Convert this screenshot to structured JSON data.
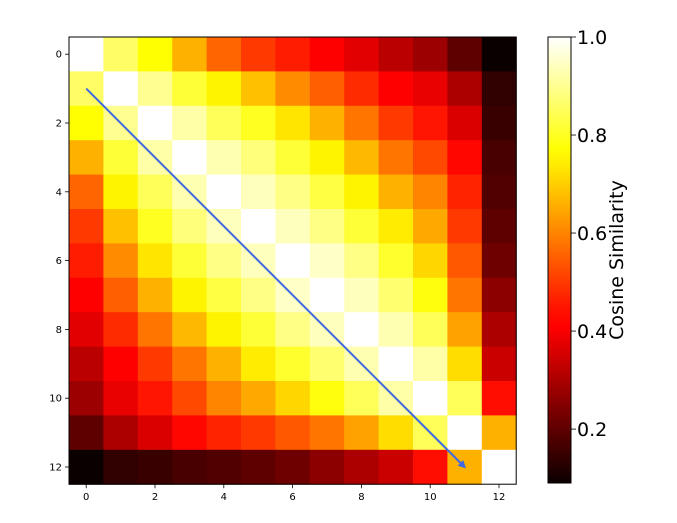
{
  "chart_data": {
    "type": "heatmap",
    "title": "",
    "xlabel": "",
    "ylabel": "",
    "rows": 13,
    "cols": 13,
    "x_ticks": [
      0,
      2,
      4,
      6,
      8,
      10,
      12
    ],
    "y_ticks": [
      0,
      2,
      4,
      6,
      8,
      10,
      12
    ],
    "colormap": "hot",
    "colorbar": {
      "label": "Cosine Similarity",
      "range": [
        0.09,
        1.0
      ],
      "ticks": [
        "0.2",
        "0.4",
        "0.6",
        "0.8",
        "1.0"
      ]
    },
    "values": [
      [
        1.0,
        0.86,
        0.77,
        0.66,
        0.56,
        0.5,
        0.46,
        0.42,
        0.37,
        0.32,
        0.28,
        0.2,
        0.09
      ],
      [
        0.86,
        1.0,
        0.9,
        0.82,
        0.75,
        0.68,
        0.61,
        0.55,
        0.48,
        0.42,
        0.38,
        0.3,
        0.14
      ],
      [
        0.77,
        0.9,
        1.0,
        0.92,
        0.85,
        0.8,
        0.73,
        0.66,
        0.58,
        0.5,
        0.45,
        0.36,
        0.15
      ],
      [
        0.66,
        0.82,
        0.92,
        1.0,
        0.93,
        0.88,
        0.82,
        0.75,
        0.67,
        0.58,
        0.52,
        0.43,
        0.17
      ],
      [
        0.56,
        0.75,
        0.85,
        0.93,
        1.0,
        0.94,
        0.89,
        0.83,
        0.75,
        0.66,
        0.6,
        0.47,
        0.18
      ],
      [
        0.5,
        0.68,
        0.8,
        0.88,
        0.94,
        1.0,
        0.94,
        0.89,
        0.82,
        0.74,
        0.65,
        0.5,
        0.2
      ],
      [
        0.46,
        0.61,
        0.73,
        0.82,
        0.89,
        0.94,
        1.0,
        0.95,
        0.89,
        0.81,
        0.71,
        0.54,
        0.22
      ],
      [
        0.42,
        0.55,
        0.66,
        0.75,
        0.83,
        0.89,
        0.95,
        1.0,
        0.94,
        0.87,
        0.78,
        0.58,
        0.26
      ],
      [
        0.37,
        0.48,
        0.58,
        0.67,
        0.75,
        0.82,
        0.89,
        0.94,
        1.0,
        0.93,
        0.85,
        0.64,
        0.3
      ],
      [
        0.32,
        0.42,
        0.5,
        0.58,
        0.66,
        0.74,
        0.81,
        0.87,
        0.93,
        1.0,
        0.92,
        0.72,
        0.34
      ],
      [
        0.28,
        0.38,
        0.45,
        0.52,
        0.6,
        0.65,
        0.71,
        0.78,
        0.85,
        0.92,
        1.0,
        0.85,
        0.44
      ],
      [
        0.2,
        0.3,
        0.36,
        0.43,
        0.47,
        0.5,
        0.54,
        0.58,
        0.64,
        0.72,
        0.85,
        1.0,
        0.66
      ],
      [
        0.09,
        0.14,
        0.15,
        0.17,
        0.18,
        0.2,
        0.22,
        0.26,
        0.3,
        0.34,
        0.44,
        0.66,
        1.0
      ]
    ],
    "arrow": {
      "from": [
        0,
        1
      ],
      "to": [
        11,
        12
      ],
      "color": "#4169e1"
    }
  }
}
